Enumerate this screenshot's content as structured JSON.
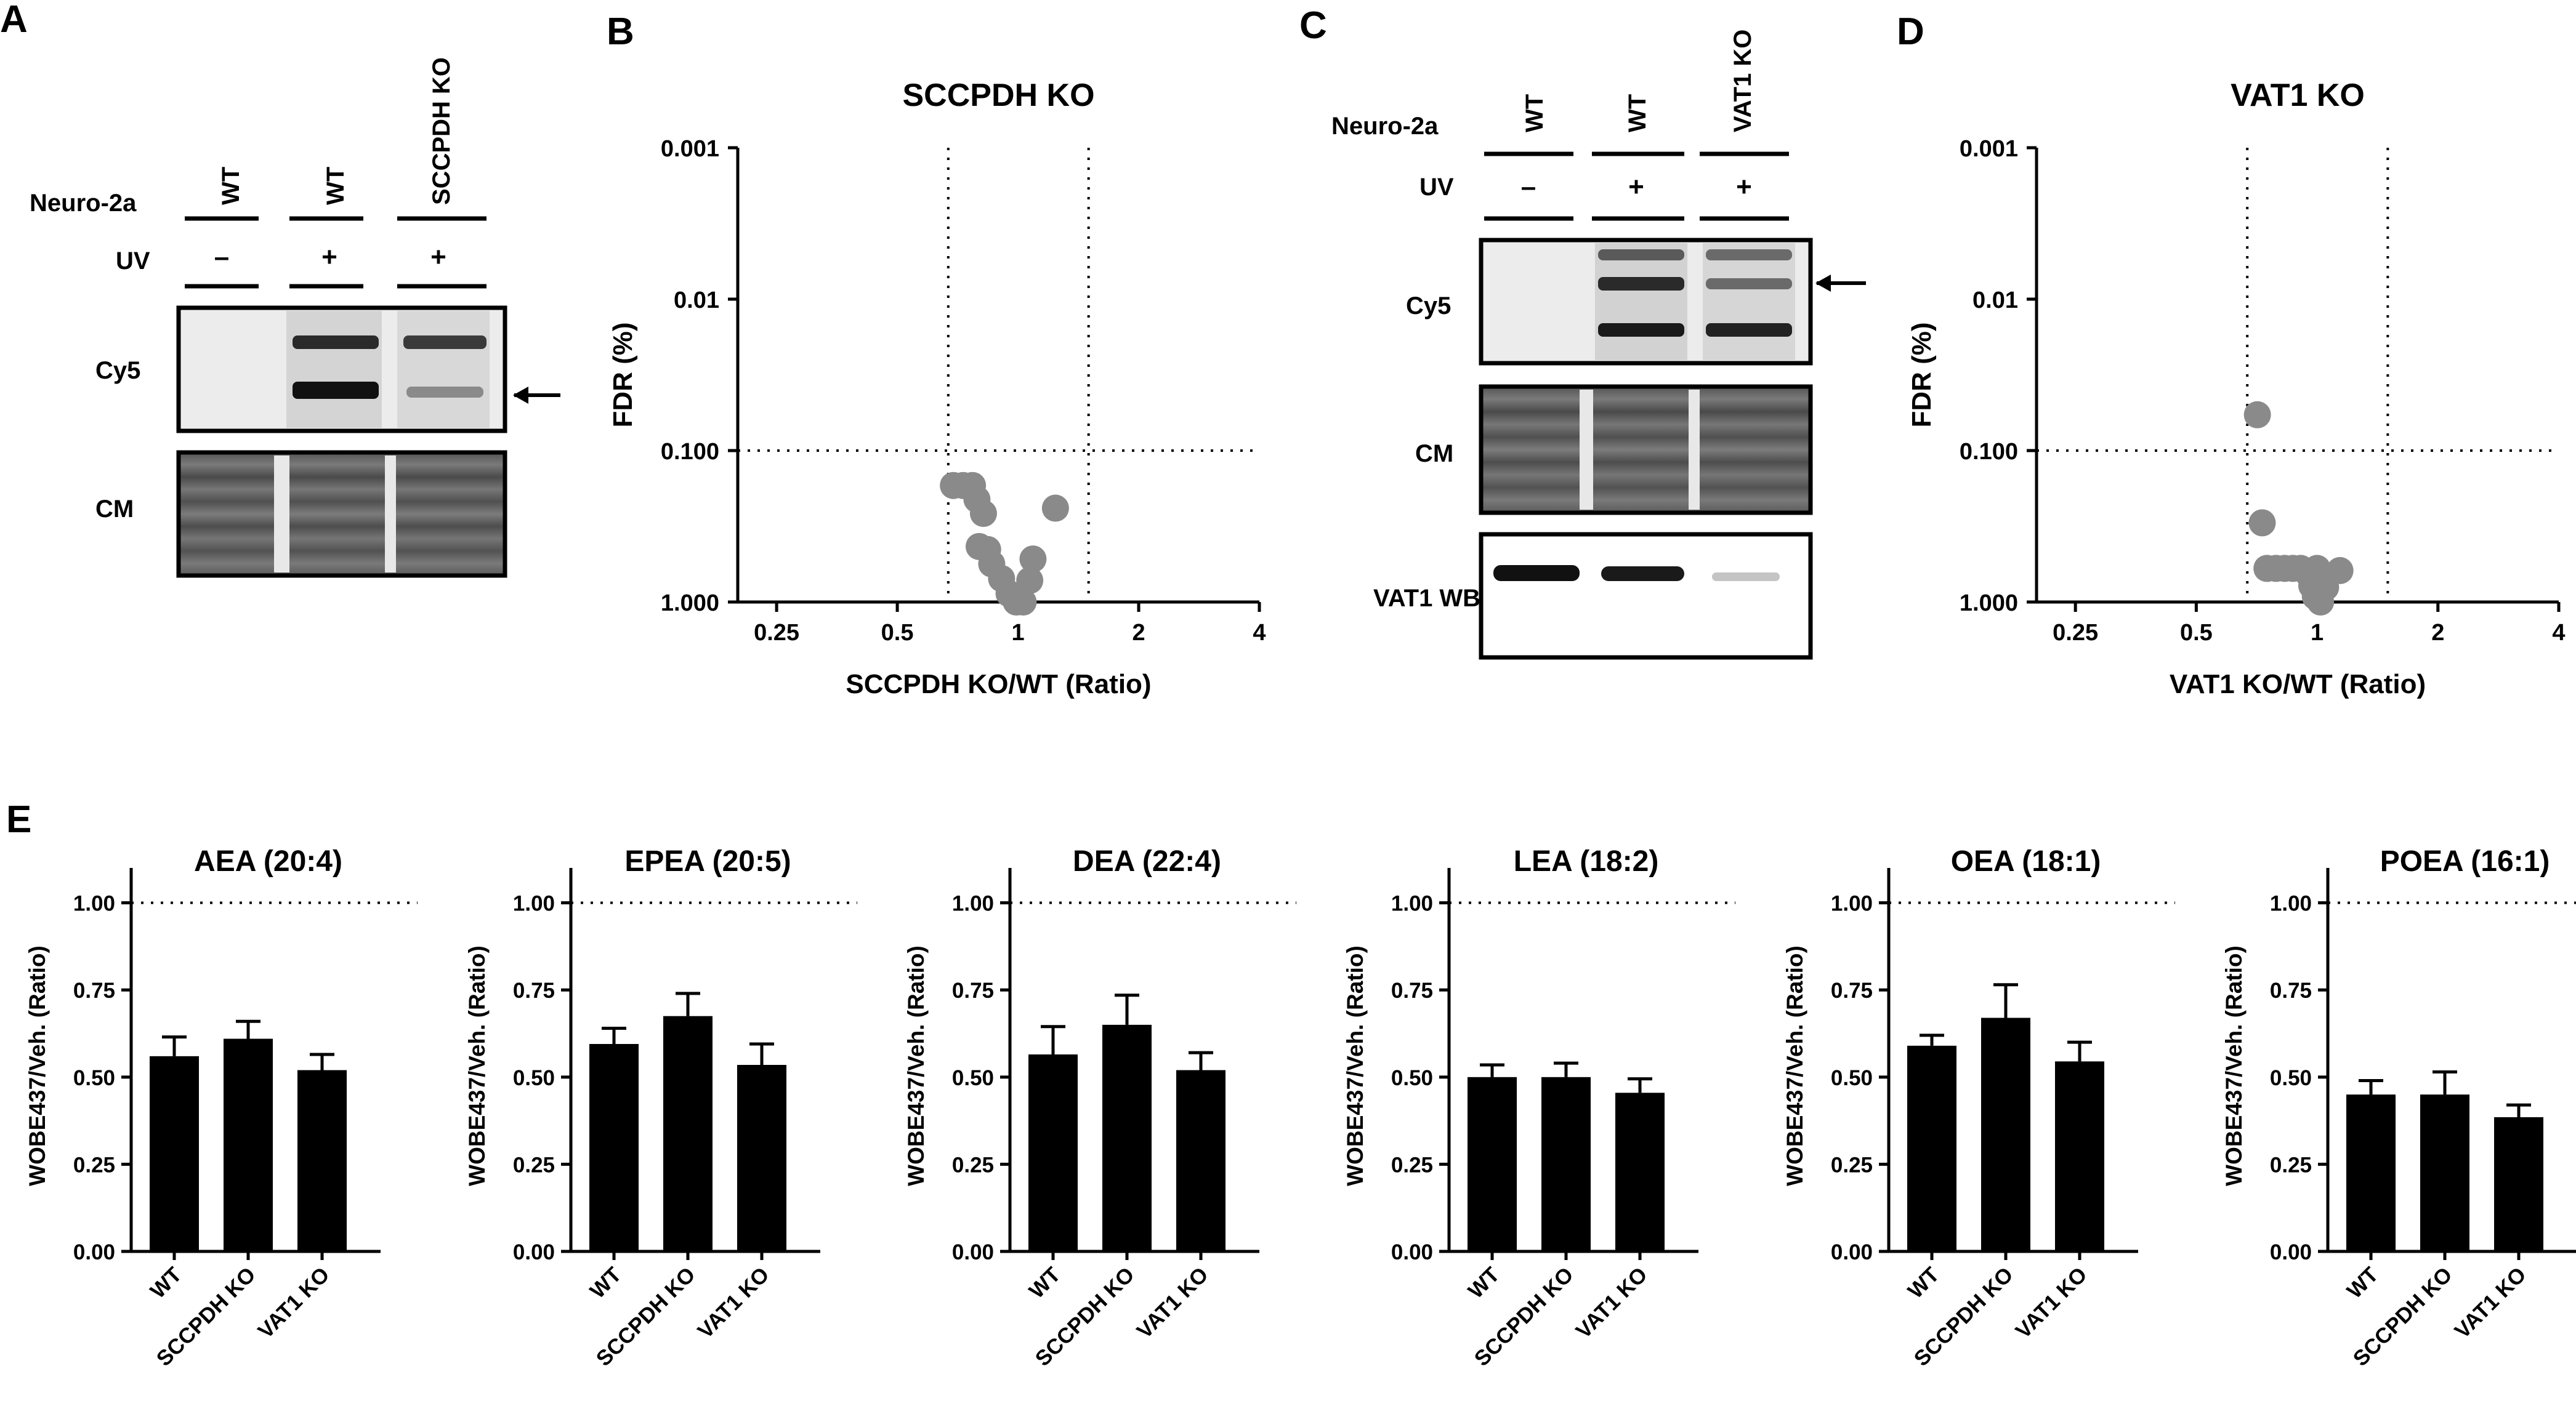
{
  "panels": {
    "A": {
      "letter": "A",
      "row_labels": {
        "cell": "Neuro-2a",
        "uv": "UV",
        "cy5": "Cy5",
        "cm": "CM"
      },
      "lanes": [
        {
          "genotype": "WT",
          "uv": "–"
        },
        {
          "genotype": "WT",
          "uv": "+"
        },
        {
          "genotype": "SCCPDH KO",
          "uv": "+"
        }
      ]
    },
    "C": {
      "letter": "C",
      "row_labels": {
        "cell": "Neuro-2a",
        "uv": "UV",
        "cy5": "Cy5",
        "cm": "CM",
        "wb": "VAT1 WB"
      },
      "lanes": [
        {
          "genotype": "WT",
          "uv": "–"
        },
        {
          "genotype": "WT",
          "uv": "+"
        },
        {
          "genotype": "VAT1 KO",
          "uv": "+"
        }
      ]
    },
    "E": {
      "letter": "E"
    }
  },
  "chart_data": [
    {
      "id": "B",
      "letter": "B",
      "type": "scatter",
      "title": "SCCPDH  KO",
      "xlabel": "SCCPDH KO/WT  (Ratio)",
      "ylabel": "FDR (%)",
      "x_scale": "log2",
      "y_scale": "log10-reversed",
      "xlim": [
        0.2,
        4
      ],
      "ylim": [
        1.0,
        0.001
      ],
      "x_ticks": [
        "0.25",
        "0.5",
        "1",
        "2",
        "4"
      ],
      "y_ticks": [
        "0.001",
        "0.01",
        "0.100",
        "1.000"
      ],
      "threshold_lines": {
        "y": 0.1,
        "x": [
          0.67,
          1.5
        ]
      },
      "point_color": "#8a8a8a",
      "points": [
        {
          "x": 0.69,
          "y": 0.17
        },
        {
          "x": 0.73,
          "y": 0.17
        },
        {
          "x": 0.77,
          "y": 0.17
        },
        {
          "x": 0.79,
          "y": 0.21
        },
        {
          "x": 0.82,
          "y": 0.26
        },
        {
          "x": 0.8,
          "y": 0.43
        },
        {
          "x": 0.84,
          "y": 0.45
        },
        {
          "x": 0.86,
          "y": 0.56
        },
        {
          "x": 0.91,
          "y": 0.7
        },
        {
          "x": 0.95,
          "y": 0.88
        },
        {
          "x": 0.99,
          "y": 1.0
        },
        {
          "x": 1.03,
          "y": 1.0
        },
        {
          "x": 1.07,
          "y": 0.72
        },
        {
          "x": 1.09,
          "y": 0.52
        },
        {
          "x": 1.24,
          "y": 0.24
        }
      ]
    },
    {
      "id": "D",
      "letter": "D",
      "type": "scatter",
      "title": "VAT1 KO",
      "xlabel": "VAT1 KO/WT  (Ratio)",
      "ylabel": "FDR (%)",
      "x_scale": "log2",
      "y_scale": "log10-reversed",
      "xlim": [
        0.2,
        4
      ],
      "ylim": [
        1.0,
        0.001
      ],
      "x_ticks": [
        "0.25",
        "0.5",
        "1",
        "2",
        "4"
      ],
      "y_ticks": [
        "0.001",
        "0.01",
        "0.100",
        "1.000"
      ],
      "threshold_lines": {
        "y": 0.1,
        "x": [
          0.67,
          1.5
        ]
      },
      "point_color": "#8a8a8a",
      "points": [
        {
          "x": 0.71,
          "y": 0.058
        },
        {
          "x": 0.73,
          "y": 0.3
        },
        {
          "x": 0.75,
          "y": 0.6
        },
        {
          "x": 0.79,
          "y": 0.6
        },
        {
          "x": 0.83,
          "y": 0.6
        },
        {
          "x": 0.87,
          "y": 0.6
        },
        {
          "x": 0.91,
          "y": 0.6
        },
        {
          "x": 0.95,
          "y": 0.65
        },
        {
          "x": 0.97,
          "y": 0.78
        },
        {
          "x": 0.99,
          "y": 0.92
        },
        {
          "x": 1.02,
          "y": 1.0
        },
        {
          "x": 1.05,
          "y": 0.8
        },
        {
          "x": 1.0,
          "y": 0.6
        },
        {
          "x": 1.14,
          "y": 0.62
        }
      ]
    },
    {
      "id": "E1",
      "type": "bar",
      "title": "AEA (20:4)",
      "ylabel": "WOBE437/Veh. (Ratio)",
      "categories": [
        "WT",
        "SCCPDH KO",
        "VAT1 KO"
      ],
      "values": [
        0.56,
        0.61,
        0.52
      ],
      "errors": [
        0.055,
        0.05,
        0.045
      ],
      "ylim": [
        0,
        1.1
      ],
      "y_ticks": [
        "0.00",
        "0.25",
        "0.50",
        "0.75",
        "1.00"
      ],
      "reference_line": 1.0
    },
    {
      "id": "E2",
      "type": "bar",
      "title": "EPEA (20:5)",
      "ylabel": "WOBE437/Veh. (Ratio)",
      "categories": [
        "WT",
        "SCCPDH KO",
        "VAT1 KO"
      ],
      "values": [
        0.595,
        0.675,
        0.535
      ],
      "errors": [
        0.045,
        0.065,
        0.06
      ],
      "ylim": [
        0,
        1.1
      ],
      "y_ticks": [
        "0.00",
        "0.25",
        "0.50",
        "0.75",
        "1.00"
      ],
      "reference_line": 1.0
    },
    {
      "id": "E3",
      "type": "bar",
      "title": "DEA (22:4)",
      "ylabel": "WOBE437/Veh. (Ratio)",
      "categories": [
        "WT",
        "SCCPDH KO",
        "VAT1 KO"
      ],
      "values": [
        0.565,
        0.65,
        0.52
      ],
      "errors": [
        0.08,
        0.085,
        0.05
      ],
      "ylim": [
        0,
        1.1
      ],
      "y_ticks": [
        "0.00",
        "0.25",
        "0.50",
        "0.75",
        "1.00"
      ],
      "reference_line": 1.0
    },
    {
      "id": "E4",
      "type": "bar",
      "title": "LEA (18:2)",
      "ylabel": "WOBE437/Veh. (Ratio)",
      "categories": [
        "WT",
        "SCCPDH KO",
        "VAT1 KO"
      ],
      "values": [
        0.5,
        0.5,
        0.455
      ],
      "errors": [
        0.035,
        0.04,
        0.04
      ],
      "ylim": [
        0,
        1.1
      ],
      "y_ticks": [
        "0.00",
        "0.25",
        "0.50",
        "0.75",
        "1.00"
      ],
      "reference_line": 1.0
    },
    {
      "id": "E5",
      "type": "bar",
      "title": "OEA (18:1)",
      "ylabel": "WOBE437/Veh. (Ratio)",
      "categories": [
        "WT",
        "SCCPDH KO",
        "VAT1 KO"
      ],
      "values": [
        0.59,
        0.67,
        0.545
      ],
      "errors": [
        0.03,
        0.095,
        0.055
      ],
      "ylim": [
        0,
        1.1
      ],
      "y_ticks": [
        "0.00",
        "0.25",
        "0.50",
        "0.75",
        "1.00"
      ],
      "reference_line": 1.0
    },
    {
      "id": "E6",
      "type": "bar",
      "title": "POEA (16:1)",
      "ylabel": "WOBE437/Veh. (Ratio)",
      "categories": [
        "WT",
        "SCCPDH KO",
        "VAT1 KO"
      ],
      "values": [
        0.45,
        0.45,
        0.385
      ],
      "errors": [
        0.04,
        0.065,
        0.035
      ],
      "ylim": [
        0,
        1.1
      ],
      "y_ticks": [
        "0.00",
        "0.25",
        "0.50",
        "0.75",
        "1.00"
      ],
      "reference_line": 1.0
    }
  ]
}
